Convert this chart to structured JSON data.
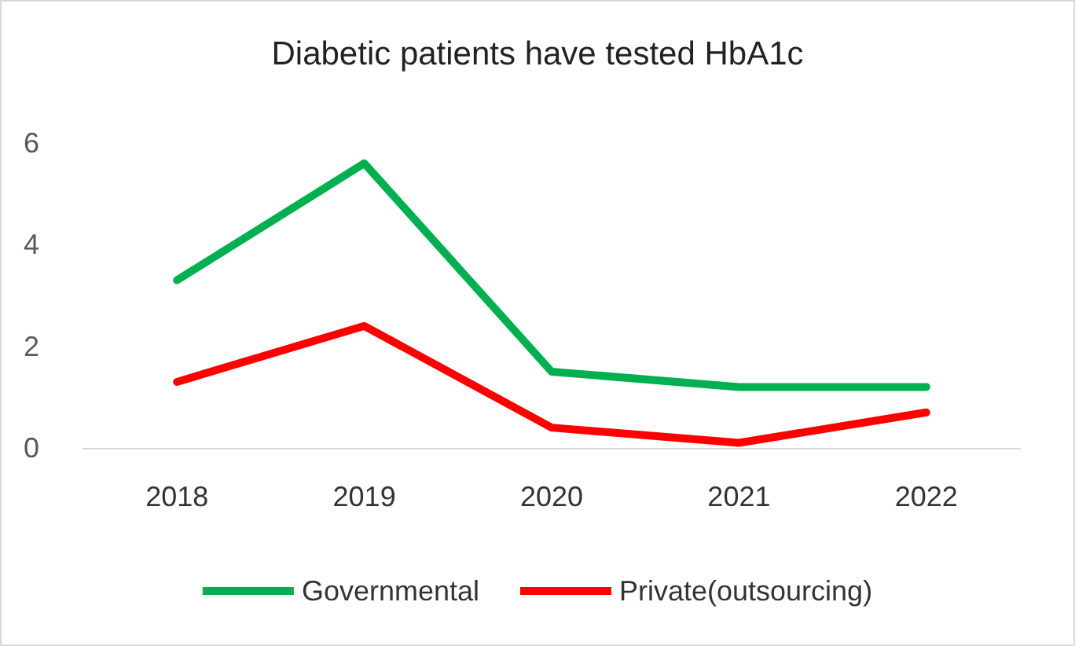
{
  "chart_data": {
    "type": "line",
    "title": "Diabetic patients have tested HbA1c",
    "categories": [
      "2018",
      "2019",
      "2020",
      "2021",
      "2022"
    ],
    "series": [
      {
        "name": "Governmental",
        "color": "#00b050",
        "values": [
          3.3,
          5.6,
          1.5,
          1.2,
          1.2
        ]
      },
      {
        "name": "Private(outsourcing)",
        "color": "#ff0000",
        "values": [
          1.3,
          2.4,
          0.4,
          0.1,
          0.7
        ]
      }
    ],
    "ylim": [
      0,
      6
    ],
    "yticks": [
      0,
      2,
      4,
      6
    ],
    "grid": false,
    "legend": "bottom",
    "marker": "none",
    "line_style": "solid"
  }
}
